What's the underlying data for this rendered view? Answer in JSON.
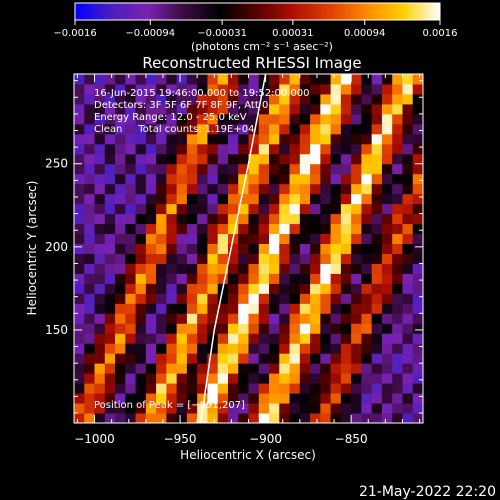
{
  "chart_data": {
    "type": "heatmap",
    "title": "Reconstructed RHESSI Image",
    "xlabel": "Heliocentric X (arcsec)",
    "ylabel": "Heliocentric Y (arcsec)",
    "xlim": [
      -1012,
      -808
    ],
    "ylim": [
      94,
      304
    ],
    "xticks": [
      -1000,
      -950,
      -900,
      -850
    ],
    "xtick_labels": [
      "−1000",
      "−950",
      "−900",
      "−850"
    ],
    "yticks": [
      150,
      200,
      250
    ],
    "ytick_labels": [
      "150",
      "200",
      "250"
    ],
    "colorbar": {
      "range": [
        -0.0016,
        0.0016
      ],
      "ticks": [
        -0.0016,
        -0.00094,
        -0.00031,
        0.00031,
        0.00094,
        0.0016
      ],
      "tick_labels": [
        "−0.0016",
        "−0.00094",
        "−0.00031",
        "0.00031",
        "0.00094",
        "0.0016"
      ],
      "label": "(photons cm⁻² s⁻¹ asec⁻²)",
      "colormap": [
        "#0000ff",
        "#4b1fbf",
        "#7a22b0",
        "#3a0a40",
        "#000000",
        "#5a0000",
        "#b01000",
        "#e04000",
        "#ff8a00",
        "#ffd000",
        "#ffffff"
      ]
    },
    "annotations": [
      "16-Jun-2015 19:46:00.000 to 19:52:00.000",
      "Detectors: 3F 5F 6F 7F 8F 9F, Att 0",
      "Energy Range: 12.0 - 25.0 keV",
      "Clean     Total counts: 1.19E+04"
    ],
    "peak_label": "Position of Peak = [−891,207]",
    "peak": [
      -891,
      207
    ],
    "limb_curve": [
      [
        -938,
        94
      ],
      [
        -930,
        150
      ],
      [
        -920,
        200
      ],
      [
        -910,
        250
      ],
      [
        -900,
        304
      ]
    ],
    "bands": [
      {
        "x0": -965,
        "slope": 2.5,
        "intensity": 0.7
      },
      {
        "x0": -925,
        "slope": 2.5,
        "intensity": 0.85
      },
      {
        "x0": -895,
        "slope": 2.5,
        "intensity": 1.0
      },
      {
        "x0": -858,
        "slope": 2.5,
        "intensity": 0.95
      },
      {
        "x0": -825,
        "slope": 2.5,
        "intensity": 0.6
      }
    ]
  },
  "footer": {
    "timestamp": "21-May-2022 22:20"
  }
}
